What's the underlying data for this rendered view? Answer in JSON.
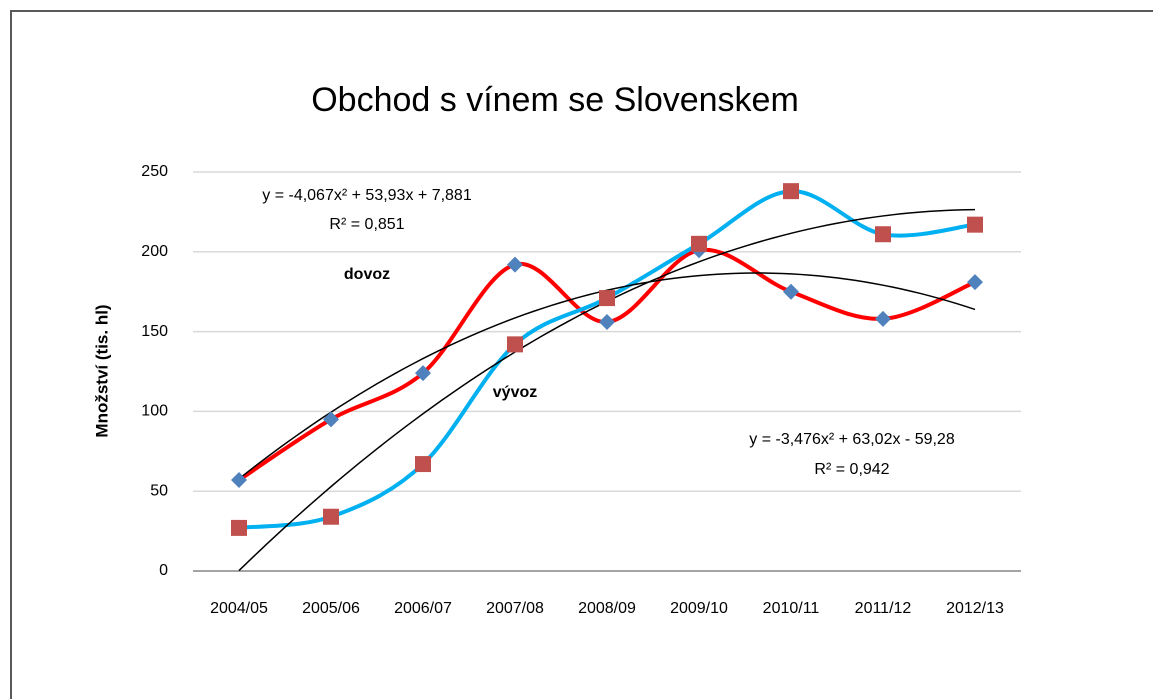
{
  "chart_data": {
    "type": "line",
    "title": "Obchod s vínem se Slovenskem",
    "ylabel": "Množství (tis. hl)",
    "categories": [
      "2004/05",
      "2005/06",
      "2006/07",
      "2007/08",
      "2008/09",
      "2009/10",
      "2010/11",
      "2011/12",
      "2012/13"
    ],
    "series": [
      {
        "name": "dovoz",
        "color": "#ff0000",
        "marker": "diamond",
        "marker_color": "#4f81bd",
        "values": [
          57,
          95,
          124,
          192,
          156,
          201,
          175,
          158,
          181
        ],
        "trendline": {
          "type": "polynomial",
          "order": 2,
          "color": "#000000",
          "equation": "y = -4,067x² + 53,93x + 7,881",
          "r2": "R² = 0,851"
        }
      },
      {
        "name": "vývoz",
        "color": "#00b0f0",
        "marker": "square",
        "marker_color": "#c0504d",
        "values": [
          27,
          34,
          67,
          142,
          171,
          205,
          238,
          211,
          217
        ],
        "trendline": {
          "type": "polynomial",
          "order": 2,
          "color": "#000000",
          "equation": "y = -3,476x² + 63,02x - 59,28",
          "r2": "R² = 0,942"
        }
      }
    ],
    "ylim": [
      0,
      250
    ],
    "yticks": [
      0,
      50,
      100,
      150,
      200,
      250
    ],
    "grid": true,
    "smooth": true
  }
}
